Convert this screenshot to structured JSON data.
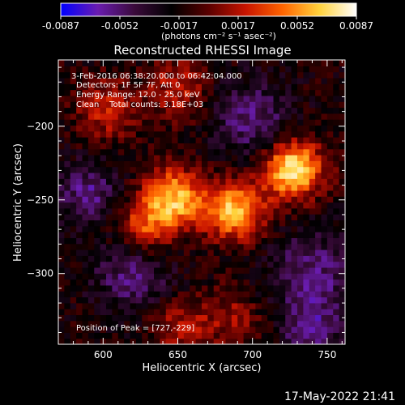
{
  "chart_data": {
    "type": "heatmap",
    "title": "Reconstructed RHESSI Image",
    "xlabel": "Heliocentric X (arcsec)",
    "ylabel": "Heliocentric Y (arcsec)",
    "xlim": [
      570,
      762
    ],
    "ylim": [
      -348,
      -155
    ],
    "x_ticks": [
      600,
      650,
      700,
      750
    ],
    "y_ticks": [
      -200,
      -250,
      -300
    ],
    "colorbar": {
      "range": [
        -0.0087,
        0.0087
      ],
      "tick_labels": [
        "-0.0087",
        "-0.0052",
        "-0.0017",
        "0.0017",
        "0.0052",
        "0.0087"
      ],
      "unit_label": "(photons cm⁻² s⁻¹ asec⁻²)",
      "colormap": [
        "#0000ff",
        "#6a1cb0",
        "#3a0a3a",
        "#000000",
        "#5a0000",
        "#c81400",
        "#ff6400",
        "#ffd23c",
        "#ffffff"
      ]
    },
    "annotations": {
      "time_range": "3-Feb-2016 06:38:20.000 to 06:42:04.000",
      "detectors": "Detectors: 1F 5F 7F, Att 0",
      "energy_range": "Energy Range: 12.0 - 25.0 keV",
      "method": "Clean    Total counts: 3.18E+03",
      "peak": "Position of Peak = [727,-229]"
    },
    "sources": [
      {
        "x": 727,
        "y": -229,
        "rel_intensity": 1.0
      },
      {
        "x": 688,
        "y": -257,
        "rel_intensity": 0.85
      },
      {
        "x": 648,
        "y": -248,
        "rel_intensity": 0.8
      },
      {
        "x": 628,
        "y": -268,
        "rel_intensity": 0.55
      },
      {
        "x": 602,
        "y": -188,
        "rel_intensity": 0.45
      },
      {
        "x": 650,
        "y": -175,
        "rel_intensity": 0.4
      },
      {
        "x": 685,
        "y": -330,
        "rel_intensity": 0.3
      },
      {
        "x": 650,
        "y": -335,
        "rel_intensity": 0.35
      }
    ]
  },
  "footer": {
    "timestamp": "17-May-2022 21:41"
  }
}
